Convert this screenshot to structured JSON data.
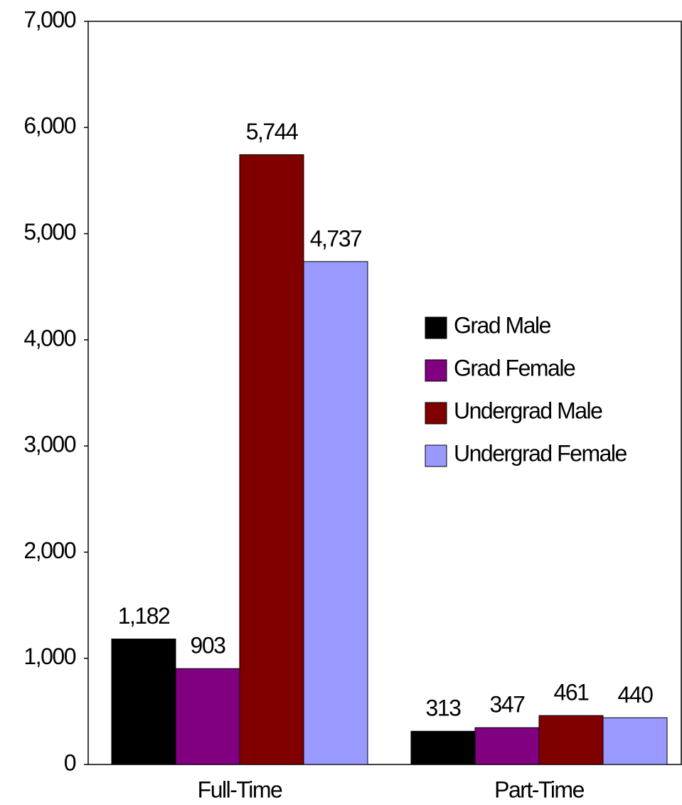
{
  "chart_data": {
    "type": "bar",
    "categories": [
      "Full-Time",
      "Part-Time"
    ],
    "series": [
      {
        "name": "Grad Male",
        "color": "#000000",
        "values": [
          1182,
          313
        ],
        "value_labels": [
          "1,182",
          "313"
        ]
      },
      {
        "name": "Grad Female",
        "color": "#800080",
        "values": [
          903,
          347
        ],
        "value_labels": [
          "903",
          "347"
        ]
      },
      {
        "name": "Undergrad Male",
        "color": "#800000",
        "values": [
          5744,
          461
        ],
        "value_labels": [
          "5,744",
          "461"
        ]
      },
      {
        "name": "Undergrad Female",
        "color": "#9999ff",
        "values": [
          4737,
          440
        ],
        "value_labels": [
          "4,737",
          "440"
        ]
      }
    ],
    "ylim": [
      0,
      7000
    ],
    "yticks": [
      0,
      {
        "value": 1000,
        "label": "1,000"
      },
      {
        "value": 2000,
        "label": "2,000"
      },
      {
        "value": 3000,
        "label": "3,000"
      },
      {
        "value": 4000,
        "label": "4,000"
      },
      {
        "value": 5000,
        "label": "5,000"
      },
      {
        "value": 6000,
        "label": "6,000"
      },
      {
        "value": 7000,
        "label": "7,000"
      }
    ],
    "grid": false,
    "legend": "right"
  }
}
